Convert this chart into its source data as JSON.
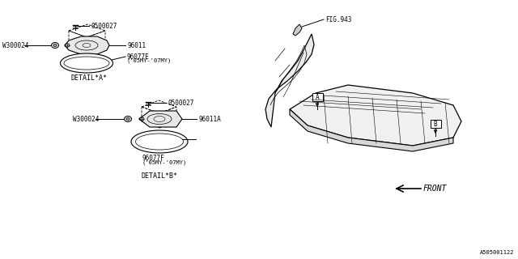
{
  "bg_color": "#ffffff",
  "line_color": "#000000",
  "part_number_ref": "A505001122",
  "labels": {
    "detail_a": "DETAIL*A*",
    "detail_b": "DETAIL*B*",
    "fig943": "FIG.943",
    "front": "FRONT",
    "p0500027": "0500027",
    "p96011": "96011",
    "p96011a": "96011A",
    "p96077e": "96077E",
    "p96077e_sub": "('05MY-'07MY)",
    "p96077f": "96077F",
    "p96077f_sub": "('05MY-'07MY)",
    "pw300024": "W300024",
    "label_a": "A",
    "label_b": "B"
  }
}
